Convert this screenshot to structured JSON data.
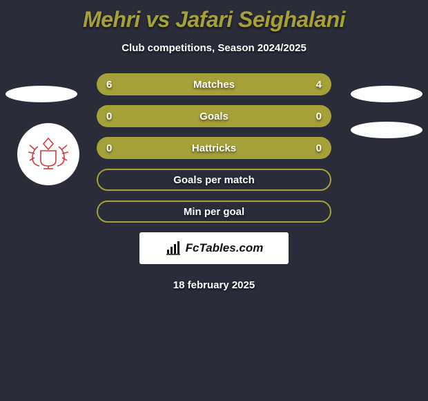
{
  "title": "Mehri vs Jafari Seighalani",
  "title_color": "#a6a038",
  "subtitle": "Club competitions, Season 2024/2025",
  "rows": [
    {
      "label": "Matches",
      "left": "6",
      "right": "4",
      "bg": "#a6a038",
      "border": "none"
    },
    {
      "label": "Goals",
      "left": "0",
      "right": "0",
      "bg": "#a6a038",
      "border": "none"
    },
    {
      "label": "Hattricks",
      "left": "0",
      "right": "0",
      "bg": "#a6a038",
      "border": "none"
    },
    {
      "label": "Goals per match",
      "left": "",
      "right": "",
      "bg": "transparent",
      "border": "2px solid #a6a038"
    },
    {
      "label": "Min per goal",
      "left": "",
      "right": "",
      "bg": "transparent",
      "border": "2px solid #a6a038"
    }
  ],
  "brand": "FcTables.com",
  "date": "18 february 2025",
  "colors": {
    "page_bg": "#2a2c3a",
    "accent": "#a6a038",
    "text": "#ffffff",
    "brand_bg": "#ffffff",
    "brand_text": "#111111",
    "badge_stroke": "#d23a3a"
  }
}
